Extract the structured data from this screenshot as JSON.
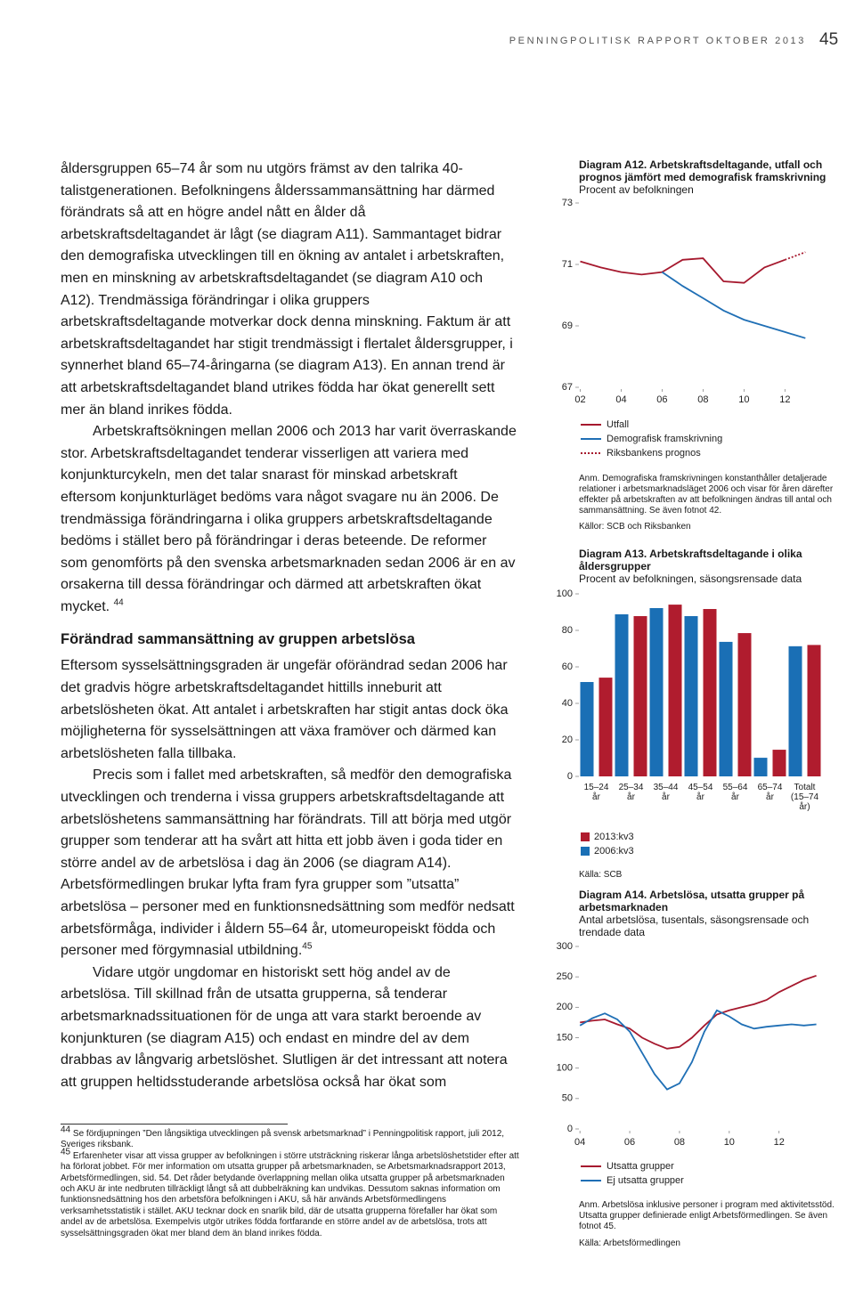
{
  "header": {
    "title": "PENNINGPOLITISK RAPPORT OKTOBER 2013",
    "page_number": "45"
  },
  "body": [
    {
      "text": "åldersgruppen 65–74 år som nu utgörs främst av den talrika 40-talistgenerationen. Befolkningens ålderssammansättning har därmed förändrats så att en högre andel nått en ålder då arbetskraftsdeltagandet är lågt (se diagram A11). Sammantaget bidrar den demografiska utvecklingen till en ökning av antalet i arbetskraften, men en minskning av arbetskraftsdeltagandet (se diagram A10 och A12). Trendmässiga förändringar i olika gruppers arbetskraftsdeltagande motverkar dock denna minskning. Faktum är att arbetskraftsdeltagandet har stigit trendmässigt i flertalet åldersgrupper, i synnerhet bland 65–74-åringarna (se diagram A13). En annan trend är att arbetskraftsdeltagandet bland utrikes födda har ökat generellt sett mer än bland inrikes födda."
    },
    {
      "text": "Arbetskraftsökningen mellan 2006 och 2013 har varit överraskande stor. Arbetskraftsdeltagandet tenderar visserligen att variera med konjunkturcykeln, men det talar snarast för minskad arbetskraft eftersom konjunkturläget bedöms vara något svagare nu än 2006. De trendmässiga förändringarna i olika gruppers arbetskraftsdeltagande bedöms i stället bero på förändringar i deras beteende. De reformer som genomförts på den svenska arbetsmarknaden sedan 2006 är en av orsakerna till dessa förändringar och därmed att arbetskraften ökat mycket.",
      "note": "44"
    },
    {
      "text": "Eftersom sysselsättningsgraden är ungefär oförändrad sedan 2006 har det gradvis högre arbetskraftsdeltagandet hittills inneburit att arbetslösheten ökat. Att antalet i arbetskraften har stigit antas dock öka möjligheterna för sysselsättningen att växa framöver och därmed kan arbetslösheten falla tillbaka."
    },
    {
      "text": "Precis som i fallet med arbetskraften, så medför den demografiska utvecklingen och trenderna i vissa gruppers arbetskraftsdeltagande att arbetslöshetens sammansättning har förändrats. Till att börja med utgör grupper som tenderar att ha svårt att hitta ett jobb även i goda tider en större andel av de arbetslösa i dag än 2006 (se diagram A14). Arbetsförmedlingen brukar lyfta fram fyra grupper som ”utsatta” arbetslösa – personer med en funktionsnedsättning som medför nedsatt arbetsförmåga, individer i åldern 55–64 år, utomeuropeiskt födda och personer med förgymnasial utbildning.",
      "note": "45"
    },
    {
      "text": "Vidare utgör ungdomar en historiskt sett hög andel av de arbetslösa. Till skillnad från de utsatta grupperna, så tenderar arbetsmarknadssituationen för de unga att vara starkt beroende av konjunkturen (se diagram A15) och endast en mindre del av dem drabbas av långvarig arbetslöshet. Slutligen är det intressant att notera att gruppen heltidsstuderande arbetslösa också har ökat som"
    }
  ],
  "heading": "Förändrad sammansättning av gruppen arbetslösa",
  "footnotes": [
    {
      "number": "44",
      "text": "Se fördjupningen ”Den långsiktiga utvecklingen på svensk arbetsmarknad” i Penningpolitisk rapport, juli 2012, Sveriges riksbank."
    },
    {
      "number": "45",
      "text": "Erfarenheter visar att vissa grupper av befolkningen i större utsträckning riskerar långa arbetslöshetstider efter att ha förlorat jobbet. För mer information om utsatta grupper på arbetsmarknaden, se Arbetsmarknadsrapport 2013, Arbetsförmedlingen, sid. 54. Det råder betydande överlappning mellan olika utsatta grupper på arbetsmarknaden och AKU är inte nedbruten tillräckligt långt så att dubbelräkning kan undvikas. Dessutom saknas information om funktionsnedsättning hos den arbetsföra befolkningen i AKU, så här används Arbetsförmedlingens verksamhetsstatistik i stället. AKU tecknar dock en snarlik bild, där de utsatta grupperna förefaller har ökat som andel av de arbetslösa. Exempelvis utgör utrikes födda fortfarande en större andel av de arbetslösa, trots att sysselsättningsgraden ökat mer bland dem än bland inrikes födda."
    }
  ],
  "chart_data": [
    {
      "type": "line",
      "title": "Diagram A12. Arbetskraftsdeltagande, utfall och prognos jämfört med demografisk framskrivning",
      "subtitle": "Procent av befolkningen",
      "x": [
        2002,
        2003,
        2004,
        2005,
        2006,
        2007,
        2008,
        2009,
        2010,
        2011,
        2012,
        2013
      ],
      "xlim": [
        2001.5,
        2013.9
      ],
      "xticks": [
        {
          "value": 2002,
          "label": "02"
        },
        {
          "value": 2004,
          "label": "04"
        },
        {
          "value": 2006,
          "label": "06"
        },
        {
          "value": 2008,
          "label": "08"
        },
        {
          "value": 2010,
          "label": "10"
        },
        {
          "value": 2012,
          "label": "12"
        }
      ],
      "ylim": [
        67,
        73
      ],
      "yticks": [
        67,
        69,
        71,
        73
      ],
      "series": [
        {
          "name": "Utfall",
          "color": "#a6192e",
          "values": [
            71.1,
            70.9,
            70.75,
            70.67,
            70.75,
            71.15,
            71.2,
            70.45,
            70.4,
            70.9,
            71.15,
            null
          ]
        },
        {
          "name": "Demografisk framskrivning",
          "color": "#1f6fb5",
          "values": [
            null,
            null,
            null,
            null,
            70.75,
            70.3,
            69.9,
            69.5,
            69.2,
            69.0,
            68.8,
            68.6
          ]
        },
        {
          "name": "Riksbankens prognos",
          "color": "#a6192e",
          "linestyle": "dotted",
          "values": [
            null,
            null,
            null,
            null,
            null,
            null,
            null,
            null,
            null,
            null,
            71.15,
            71.4
          ]
        }
      ],
      "note": "Anm. Demografiska framskrivningen konstanthåller detaljerade relationer i arbetsmarknadsläget 2006 och visar för åren därefter effekter på arbetskraften av att befolkningen ändras till antal och sammansättning. Se även fotnot 42.",
      "source": "Källor: SCB och Riksbanken"
    },
    {
      "type": "bar",
      "title": "Diagram A13. Arbetskraftsdeltagande i olika åldersgrupper",
      "subtitle": "Procent av befolkningen, säsongsrensade data",
      "categories": [
        "15–24 år",
        "25–34 år",
        "35–44 år",
        "45–54 år",
        "55–64 år",
        "65–74 år",
        "Totalt (15–74 år)"
      ],
      "ylim": [
        0,
        100
      ],
      "yticks": [
        0,
        20,
        40,
        60,
        80,
        100
      ],
      "series": [
        {
          "name": "2013:kv3",
          "color": "#b01c2e",
          "values": [
            54.1,
            87.8,
            94.1,
            91.7,
            78.5,
            14.6,
            72.0
          ]
        },
        {
          "name": "2006:kv3",
          "color": "#1a6fb5",
          "values": [
            51.7,
            88.8,
            92.2,
            87.8,
            73.7,
            10.2,
            71.3
          ]
        }
      ],
      "source": "Källa: SCB"
    },
    {
      "type": "line",
      "title": "Diagram A14. Arbetslösa, utsatta grupper på arbetsmarknaden",
      "subtitle": "Antal arbetslösa, tusentals, säsongsrensade och trendade data",
      "x": [
        2004,
        2004.5,
        2005,
        2005.5,
        2006,
        2006.5,
        2007,
        2007.5,
        2008,
        2008.5,
        2009,
        2009.5,
        2010,
        2010.5,
        2011,
        2011.5,
        2012,
        2012.5,
        2013,
        2013.5
      ],
      "xlim": [
        2003.6,
        2013.8
      ],
      "xticks": [
        {
          "value": 2004,
          "label": "04"
        },
        {
          "value": 2006,
          "label": "06"
        },
        {
          "value": 2008,
          "label": "08"
        },
        {
          "value": 2010,
          "label": "10"
        },
        {
          "value": 2012,
          "label": "12"
        }
      ],
      "ylim": [
        0,
        300
      ],
      "yticks": [
        0,
        50,
        100,
        150,
        200,
        250,
        300
      ],
      "series": [
        {
          "name": "Utsatta grupper",
          "color": "#a6192e",
          "values": [
            175,
            178,
            180,
            172,
            165,
            150,
            140,
            132,
            135,
            150,
            170,
            188,
            195,
            200,
            205,
            212,
            225,
            235,
            245,
            252
          ]
        },
        {
          "name": "Ej utsatta grupper",
          "color": "#1f6fb5",
          "values": [
            170,
            182,
            190,
            180,
            160,
            125,
            90,
            65,
            75,
            110,
            160,
            195,
            185,
            172,
            165,
            168,
            170,
            172,
            170,
            172
          ]
        }
      ],
      "note": "Anm. Arbetslösa inklusive personer i program med aktivitetsstöd. Utsatta grupper definierade enligt Arbetsförmedlingen. Se även fotnot 45.",
      "source": "Källa: Arbetsförmedlingen"
    }
  ]
}
